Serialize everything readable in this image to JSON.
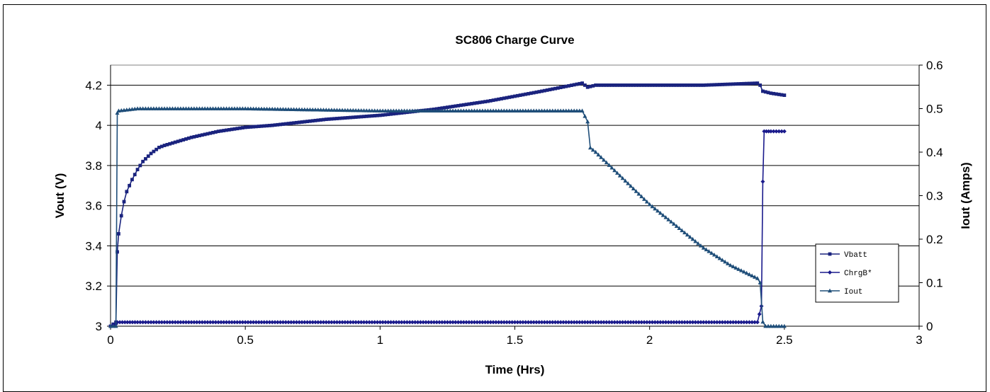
{
  "chart_data": {
    "type": "line",
    "title": "SC806 Charge Curve",
    "xlabel": "Time (Hrs)",
    "ylabel": "Vout (V)",
    "y2label": "Iout (Amps)",
    "xlim": [
      0,
      3
    ],
    "ylim": [
      3,
      4.3
    ],
    "y2lim": [
      0,
      0.6
    ],
    "xticks": [
      "0",
      "0.5",
      "1",
      "1.5",
      "2",
      "2.5",
      "3"
    ],
    "yticks": [
      "3",
      "3.2",
      "3.4",
      "3.6",
      "3.8",
      "4",
      "4.2"
    ],
    "y2ticks": [
      "0",
      "0.1",
      "0.2",
      "0.3",
      "0.4",
      "0.5",
      "0.6"
    ],
    "grid": true,
    "legend_position": "lower-right",
    "series": [
      {
        "name": "Vbatt",
        "axis": "left",
        "marker": "square",
        "color": "#1a237e",
        "x": [
          0,
          0.02,
          0.025,
          0.03,
          0.04,
          0.05,
          0.06,
          0.08,
          0.1,
          0.12,
          0.15,
          0.18,
          0.2,
          0.25,
          0.3,
          0.4,
          0.5,
          0.6,
          0.8,
          1.0,
          1.2,
          1.4,
          1.6,
          1.75,
          1.76,
          1.77,
          1.8,
          2.0,
          2.2,
          2.4,
          2.41,
          2.42,
          2.45,
          2.5
        ],
        "values": [
          3.0,
          3.02,
          3.37,
          3.46,
          3.55,
          3.62,
          3.67,
          3.73,
          3.78,
          3.82,
          3.86,
          3.89,
          3.9,
          3.92,
          3.94,
          3.97,
          3.99,
          4.0,
          4.03,
          4.05,
          4.08,
          4.12,
          4.17,
          4.21,
          4.2,
          4.19,
          4.2,
          4.2,
          4.2,
          4.21,
          4.2,
          4.17,
          4.16,
          4.15
        ]
      },
      {
        "name": "ChrgB*",
        "axis": "left",
        "marker": "diamond",
        "color": "#1a1a8c",
        "x": [
          0,
          0.02,
          0.025,
          0.1,
          0.5,
          1.0,
          1.5,
          2.0,
          2.4,
          2.415,
          2.42,
          2.425,
          2.45,
          2.5
        ],
        "values": [
          3.0,
          3.01,
          3.02,
          3.02,
          3.02,
          3.02,
          3.02,
          3.02,
          3.02,
          3.1,
          3.72,
          3.97,
          3.97,
          3.97
        ]
      },
      {
        "name": "Iout",
        "axis": "right",
        "marker": "triangle",
        "color": "#1f4e79",
        "x": [
          0,
          0.02,
          0.025,
          0.03,
          0.1,
          0.5,
          1.0,
          1.5,
          1.75,
          1.77,
          1.78,
          1.8,
          1.85,
          1.9,
          2.0,
          2.1,
          2.2,
          2.3,
          2.4,
          2.41,
          2.42,
          2.43,
          2.5
        ],
        "values": [
          0.0,
          0.0,
          0.49,
          0.495,
          0.5,
          0.5,
          0.495,
          0.495,
          0.495,
          0.47,
          0.41,
          0.4,
          0.37,
          0.34,
          0.28,
          0.23,
          0.18,
          0.14,
          0.11,
          0.1,
          0.01,
          0.0,
          0.0
        ]
      }
    ]
  }
}
